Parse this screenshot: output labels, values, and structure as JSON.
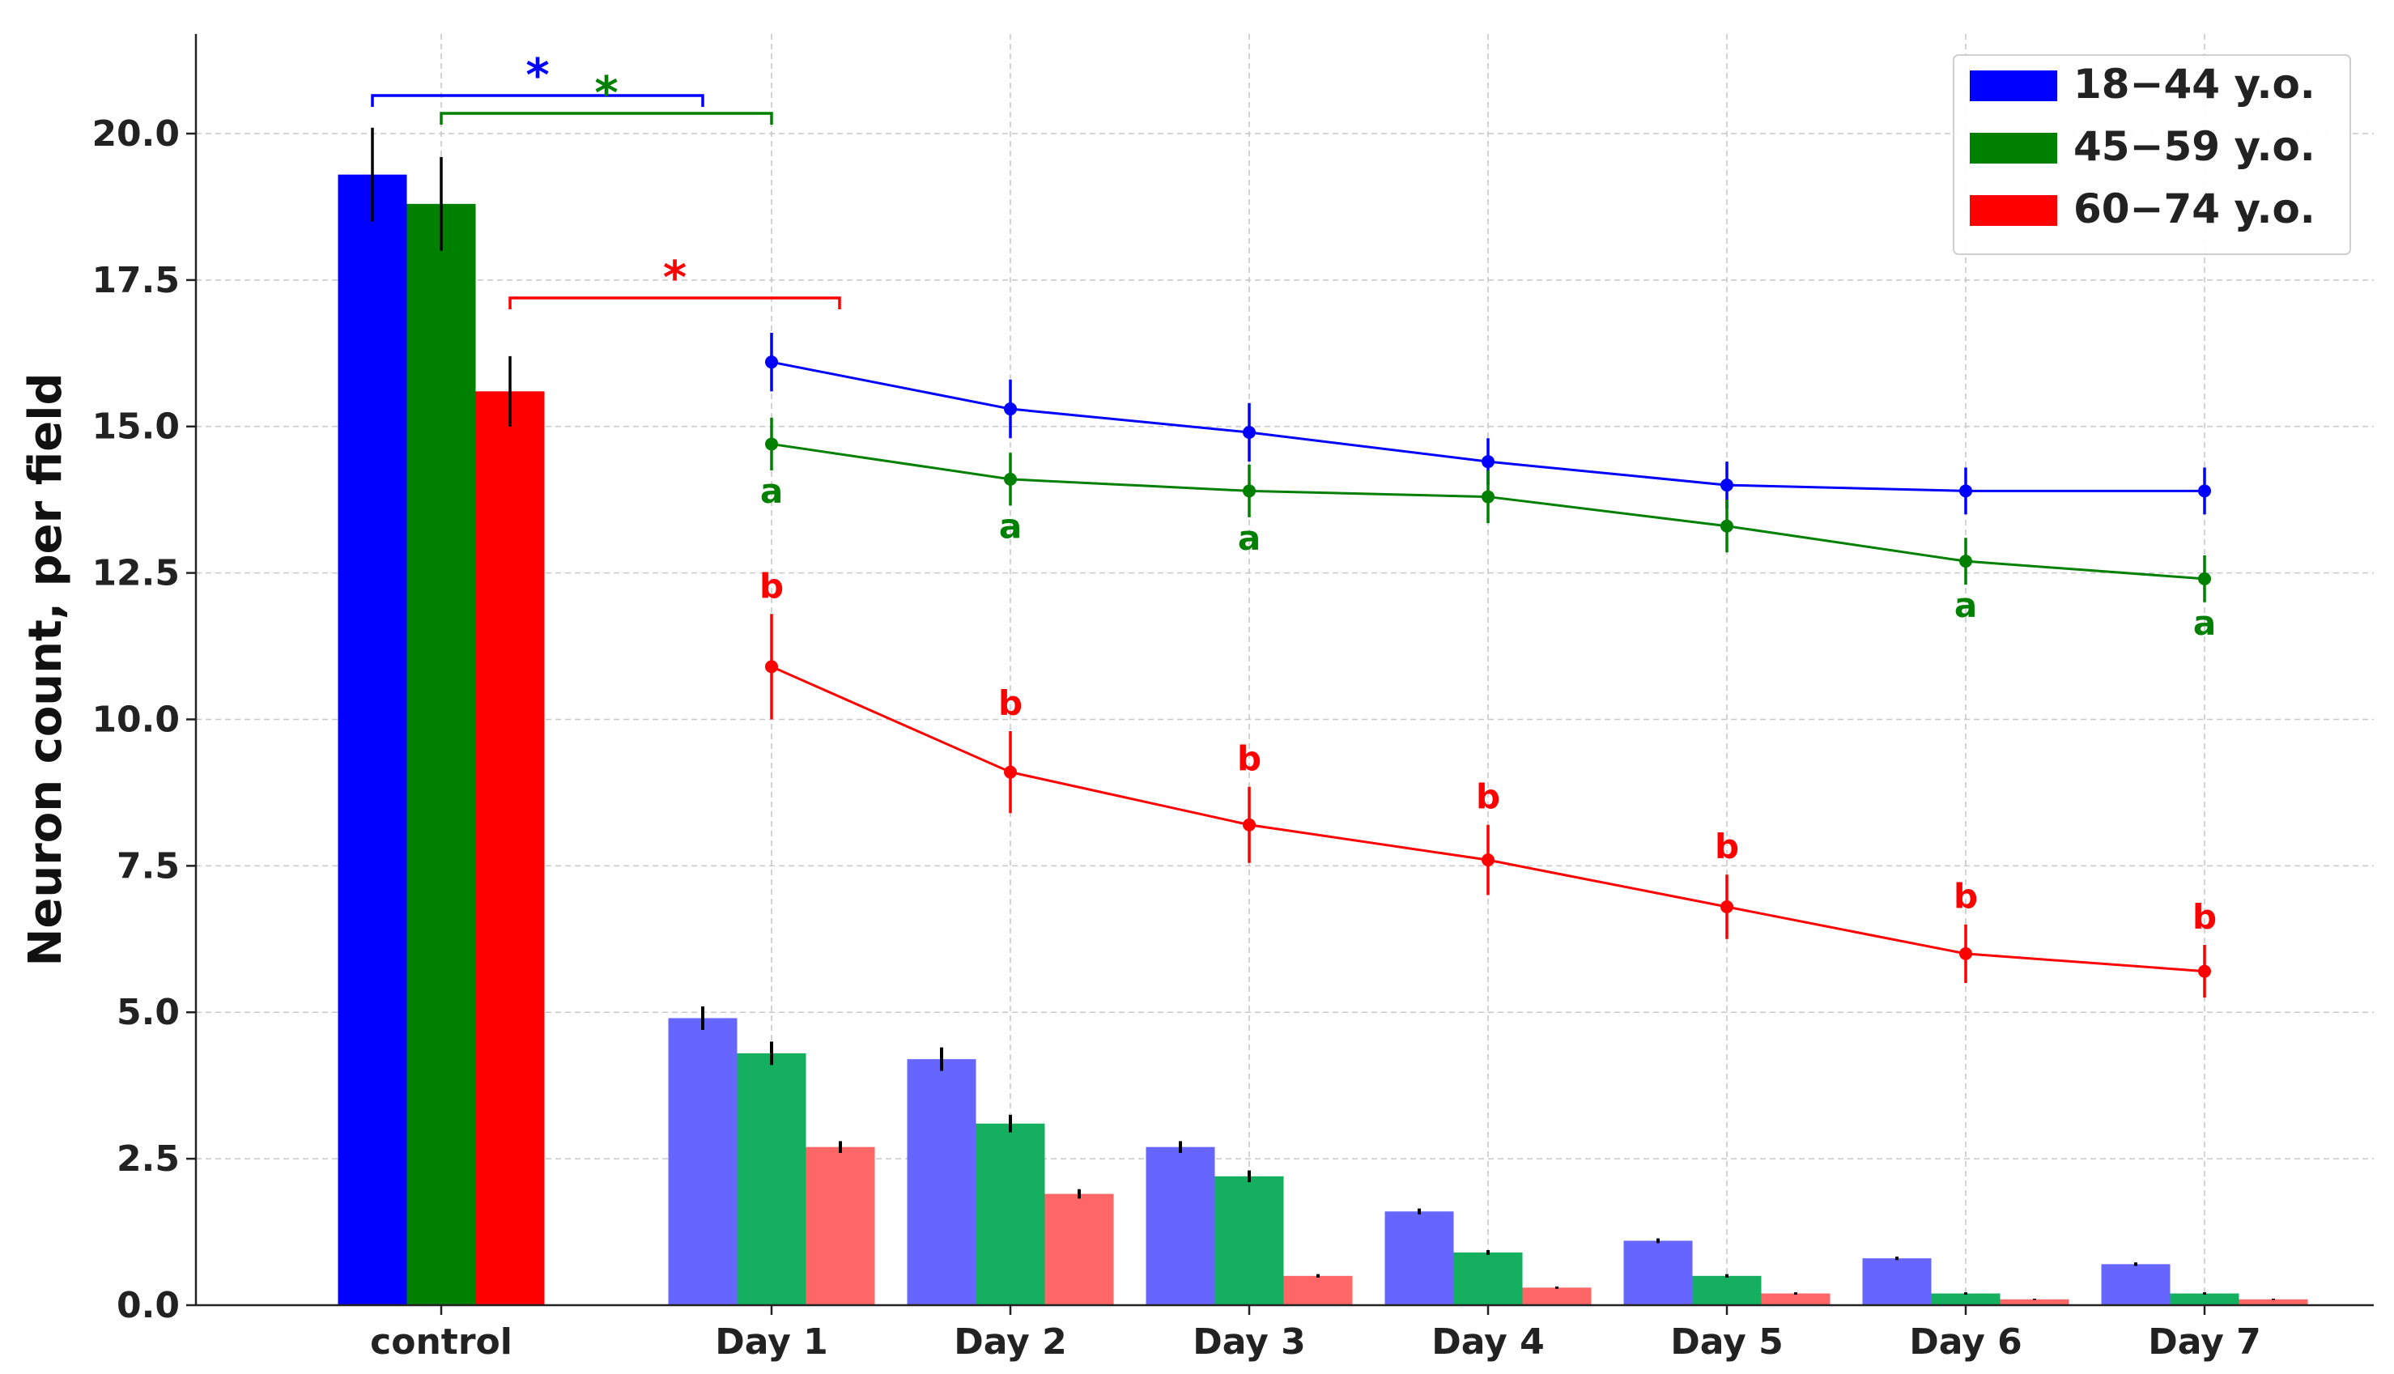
{
  "chart_data": {
    "type": "bar",
    "ylabel": "Neuron count, per field",
    "ylim": [
      0,
      21.7
    ],
    "yticks": [
      "0.0",
      "2.5",
      "5.0",
      "7.5",
      "10.0",
      "12.5",
      "15.0",
      "17.5",
      "20.0"
    ],
    "yticks_values": [
      0,
      2.5,
      5,
      7.5,
      10,
      12.5,
      15,
      17.5,
      20
    ],
    "categories": [
      "control",
      "Day 1",
      "Day 2",
      "Day 3",
      "Day 4",
      "Day 5",
      "Day 6",
      "Day 7"
    ],
    "grid": true,
    "legend_position": "top-right",
    "series": [
      {
        "name": "18−44 y.o.",
        "color": "#0000ff",
        "light_color": "#6666ff",
        "bar_values": [
          19.3,
          4.9,
          4.2,
          2.7,
          1.6,
          1.1,
          0.8,
          0.7
        ],
        "bar_errors": [
          0.8,
          0.2,
          0.2,
          0.1,
          0.05,
          0.04,
          0.03,
          0.03
        ],
        "line_values": [
          16.1,
          15.3,
          14.9,
          14.4,
          14.0,
          13.9,
          13.9
        ],
        "line_errors": [
          0.5,
          0.5,
          0.5,
          0.4,
          0.4,
          0.4,
          0.4
        ],
        "line_labels": [
          "",
          "",
          "",
          "",
          "",
          "",
          ""
        ]
      },
      {
        "name": "45−59 y.o.",
        "color": "#008000",
        "light_color": "#14b060",
        "bar_values": [
          18.8,
          4.3,
          3.1,
          2.2,
          0.9,
          0.5,
          0.2,
          0.2
        ],
        "bar_errors": [
          0.8,
          0.2,
          0.15,
          0.1,
          0.04,
          0.03,
          0.02,
          0.02
        ],
        "line_values": [
          14.7,
          14.1,
          13.9,
          13.8,
          13.3,
          12.7,
          12.4
        ],
        "line_errors": [
          0.45,
          0.45,
          0.45,
          0.45,
          0.45,
          0.4,
          0.4
        ],
        "line_labels": [
          "a",
          "a",
          "a",
          "",
          "",
          "a",
          "a"
        ]
      },
      {
        "name": "60−74 y.o.",
        "color": "#ff0000",
        "light_color": "#ff6666",
        "bar_values": [
          15.6,
          2.7,
          1.9,
          0.5,
          0.3,
          0.2,
          0.1,
          0.1
        ],
        "bar_errors": [
          0.6,
          0.1,
          0.08,
          0.03,
          0.02,
          0.02,
          0.01,
          0.01
        ],
        "line_values": [
          10.9,
          9.1,
          8.2,
          7.6,
          6.8,
          6.0,
          5.7
        ],
        "line_errors": [
          0.9,
          0.7,
          0.65,
          0.6,
          0.55,
          0.5,
          0.45
        ],
        "line_labels": [
          "b",
          "b",
          "b",
          "b",
          "b",
          "b",
          "b"
        ]
      }
    ],
    "significance": [
      {
        "label": "*",
        "color": "#0000ff",
        "from_series": 0,
        "to": "Day 1 / 18−44 y.o.",
        "y": 20.5
      },
      {
        "label": "*",
        "color": "#008000",
        "from_series": 1,
        "to": "Day 1 / 45−59 y.o.",
        "y": 20.2
      },
      {
        "label": "*",
        "color": "#ff0000",
        "from_series": 2,
        "to": "Day 1 / 60−74 y.o.",
        "y": 17.1
      }
    ]
  }
}
